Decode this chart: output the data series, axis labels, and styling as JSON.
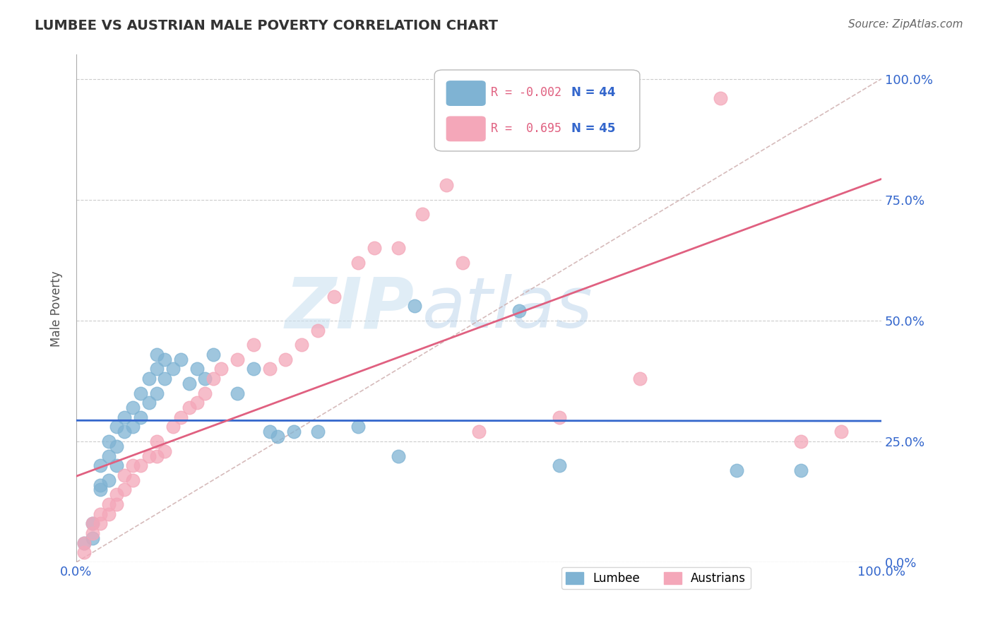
{
  "title": "LUMBEE VS AUSTRIAN MALE POVERTY CORRELATION CHART",
  "source": "Source: ZipAtlas.com",
  "ylabel": "Male Poverty",
  "xlim": [
    0,
    1
  ],
  "ylim": [
    0,
    1
  ],
  "xtick_labels": [
    "0.0%",
    "100.0%"
  ],
  "ytick_labels": [
    "0.0%",
    "25.0%",
    "50.0%",
    "75.0%",
    "100.0%"
  ],
  "ytick_positions": [
    0,
    0.25,
    0.5,
    0.75,
    1.0
  ],
  "lumbee_color": "#7fb3d3",
  "austrian_color": "#f4a7b9",
  "lumbee_line_color": "#3366cc",
  "austrian_line_color": "#e06080",
  "diag_line_color": "#ccaaaa",
  "R_lumbee": -0.002,
  "N_lumbee": 44,
  "R_austrian": 0.695,
  "N_austrian": 45,
  "lumbee_x": [
    0.01,
    0.02,
    0.02,
    0.03,
    0.03,
    0.03,
    0.04,
    0.04,
    0.04,
    0.05,
    0.05,
    0.05,
    0.06,
    0.06,
    0.07,
    0.07,
    0.08,
    0.08,
    0.09,
    0.09,
    0.1,
    0.1,
    0.1,
    0.11,
    0.11,
    0.12,
    0.13,
    0.14,
    0.15,
    0.16,
    0.17,
    0.2,
    0.22,
    0.24,
    0.25,
    0.27,
    0.3,
    0.35,
    0.4,
    0.42,
    0.55,
    0.6,
    0.82,
    0.9
  ],
  "lumbee_y": [
    0.04,
    0.05,
    0.08,
    0.15,
    0.16,
    0.2,
    0.17,
    0.22,
    0.25,
    0.2,
    0.24,
    0.28,
    0.27,
    0.3,
    0.28,
    0.32,
    0.3,
    0.35,
    0.33,
    0.38,
    0.35,
    0.4,
    0.43,
    0.38,
    0.42,
    0.4,
    0.42,
    0.37,
    0.4,
    0.38,
    0.43,
    0.35,
    0.4,
    0.27,
    0.26,
    0.27,
    0.27,
    0.28,
    0.22,
    0.53,
    0.52,
    0.2,
    0.19,
    0.19
  ],
  "austrian_x": [
    0.01,
    0.01,
    0.02,
    0.02,
    0.03,
    0.03,
    0.04,
    0.04,
    0.05,
    0.05,
    0.06,
    0.06,
    0.07,
    0.07,
    0.08,
    0.09,
    0.1,
    0.1,
    0.11,
    0.12,
    0.13,
    0.14,
    0.15,
    0.16,
    0.17,
    0.18,
    0.2,
    0.22,
    0.24,
    0.26,
    0.28,
    0.3,
    0.32,
    0.35,
    0.37,
    0.4,
    0.43,
    0.46,
    0.48,
    0.5,
    0.6,
    0.7,
    0.8,
    0.9,
    0.95
  ],
  "austrian_y": [
    0.02,
    0.04,
    0.06,
    0.08,
    0.08,
    0.1,
    0.1,
    0.12,
    0.12,
    0.14,
    0.15,
    0.18,
    0.17,
    0.2,
    0.2,
    0.22,
    0.22,
    0.25,
    0.23,
    0.28,
    0.3,
    0.32,
    0.33,
    0.35,
    0.38,
    0.4,
    0.42,
    0.45,
    0.4,
    0.42,
    0.45,
    0.48,
    0.55,
    0.62,
    0.65,
    0.65,
    0.72,
    0.78,
    0.62,
    0.27,
    0.3,
    0.38,
    0.96,
    0.25,
    0.27
  ],
  "watermark_zip": "ZIP",
  "watermark_atlas": "atlas",
  "title_color": "#333333",
  "axis_label_color": "#3366cc",
  "grid_color": "#cccccc"
}
